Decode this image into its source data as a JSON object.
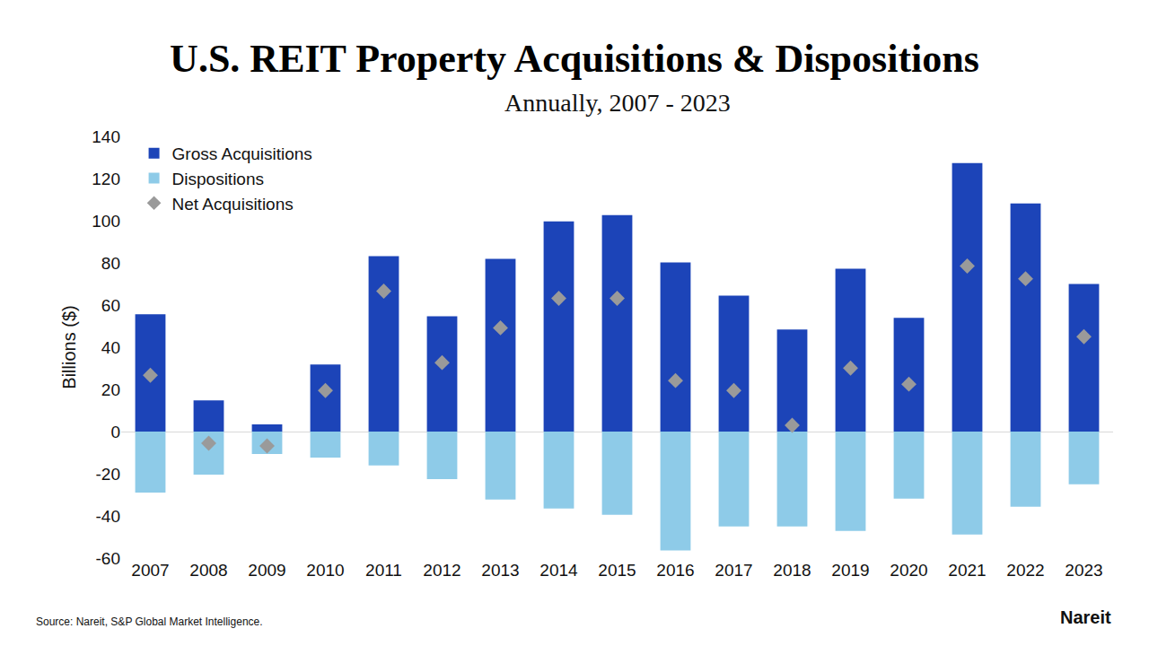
{
  "chart_data": {
    "type": "bar",
    "title": "U.S. REIT Property Acquisitions & Dispositions",
    "subtitle": "Annually, 2007 - 2023",
    "y_label": "Billions ($)",
    "source": "Source: Nareit, S&P Global Market Intelligence.",
    "brand": "Nareit",
    "categories": [
      "2007",
      "2008",
      "2009",
      "2010",
      "2011",
      "2012",
      "2013",
      "2014",
      "2015",
      "2016",
      "2017",
      "2018",
      "2019",
      "2020",
      "2021",
      "2022",
      "2023"
    ],
    "series": [
      {
        "name": "Gross Acquisitions",
        "type": "bar",
        "color": "#1c44b8",
        "values": [
          55.6,
          14.8,
          3.4,
          31.8,
          83.2,
          54.7,
          81.9,
          99.7,
          102.7,
          80.2,
          64.5,
          48.4,
          77.2,
          53.9,
          127.3,
          108.2,
          70.0
        ]
      },
      {
        "name": "Dispositions",
        "type": "bar",
        "color": "#8ecbe8",
        "values": [
          -28.9,
          -20.4,
          -10.6,
          -12.3,
          -16.1,
          -22.5,
          -32.2,
          -36.5,
          -39.5,
          -56.4,
          -45.0,
          -45.0,
          -47.1,
          -31.8,
          -48.8,
          -35.6,
          -25.0
        ]
      },
      {
        "name": "Net Acquisitions",
        "type": "scatter",
        "marker": "diamond",
        "color": "#9a9a9a",
        "values": [
          26.7,
          -5.5,
          -6.8,
          19.5,
          66.6,
          32.7,
          49.2,
          63.2,
          63.2,
          24.2,
          19.5,
          3.0,
          30.1,
          22.5,
          78.5,
          72.5,
          45.0
        ]
      }
    ],
    "ylim": [
      -60,
      140
    ],
    "yticks": [
      -60,
      -40,
      -20,
      0,
      20,
      40,
      60,
      80,
      100,
      120,
      140
    ],
    "grid": false,
    "legend": "upper left"
  }
}
